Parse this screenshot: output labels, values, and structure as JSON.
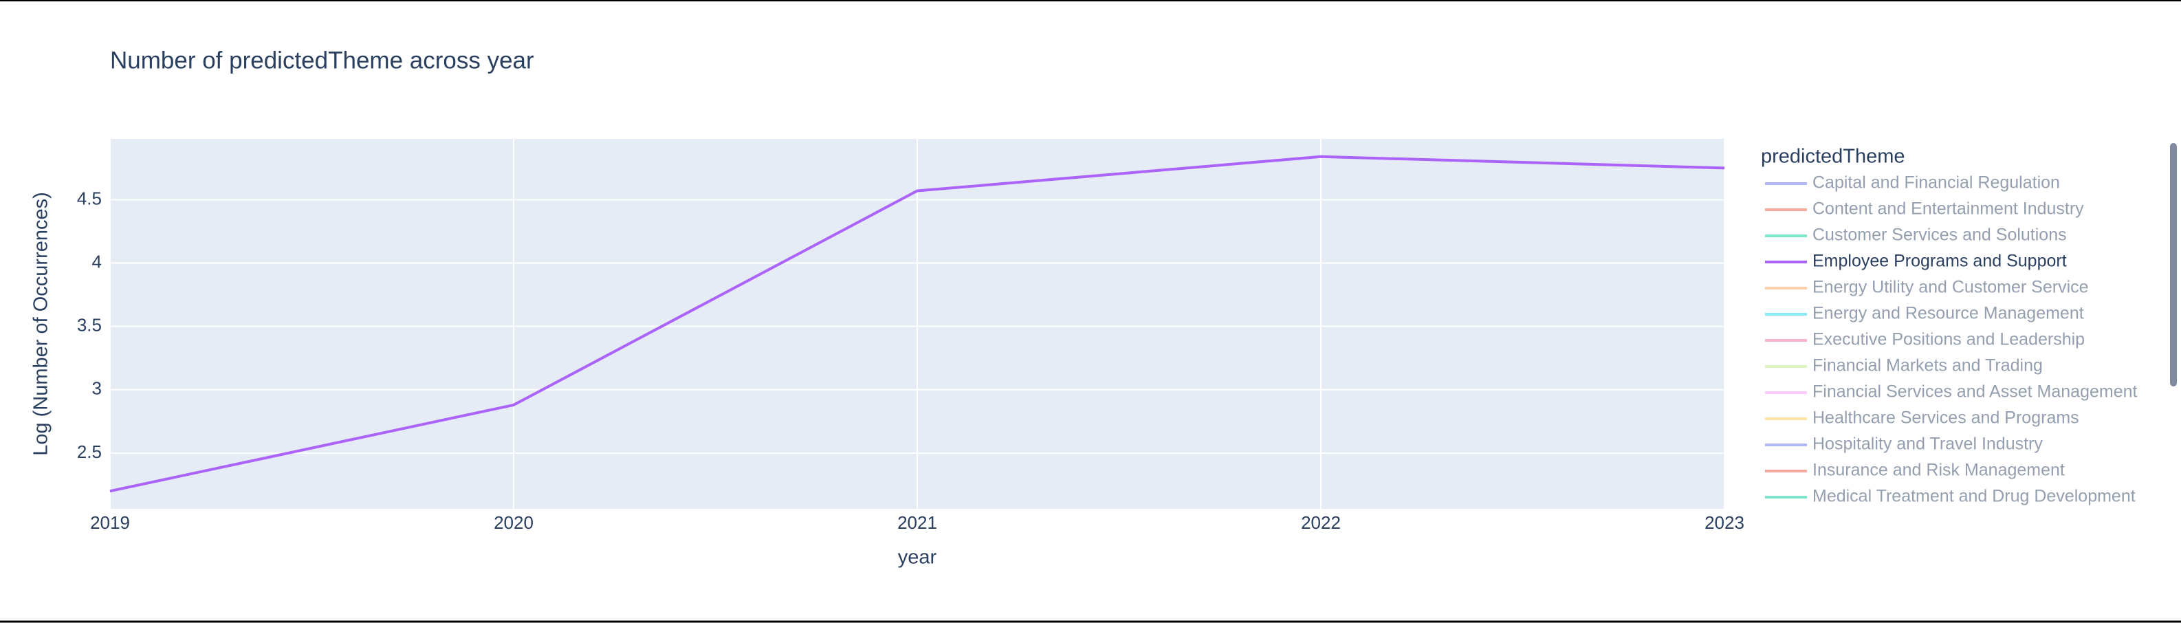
{
  "chart_data": {
    "type": "line",
    "title": "Number of predictedTheme across year",
    "x_label": "year",
    "y_label": "Log (Number of Occurrences)",
    "x": [
      2019,
      2020,
      2021,
      2022,
      2023
    ],
    "xlim": [
      2019,
      2023
    ],
    "xticks": [
      2019,
      2020,
      2021,
      2022,
      2023
    ],
    "ylim": [
      2.06,
      4.98
    ],
    "yticks": [
      2.5,
      3,
      {
        "value": 3.5,
        "label": "3.5"
      },
      4,
      4.5
    ],
    "grid": true,
    "legend_title": "predictedTheme",
    "series": [
      {
        "name": "Capital and Financial Regulation",
        "color": "#636efa",
        "visible": "legendonly"
      },
      {
        "name": "Content and Entertainment Industry",
        "color": "#EF553B",
        "visible": "legendonly"
      },
      {
        "name": "Customer Services and Solutions",
        "color": "#00cc96",
        "visible": "legendonly"
      },
      {
        "name": "Employee Programs and Support",
        "color": "#ab63fa",
        "visible": true,
        "values": [
          2.2,
          2.88,
          4.57,
          4.84,
          4.75
        ]
      },
      {
        "name": "Energy Utility and Customer Service",
        "color": "#FFA15A",
        "visible": "legendonly"
      },
      {
        "name": "Energy and Resource Management",
        "color": "#19d3f3",
        "visible": "legendonly"
      },
      {
        "name": "Executive Positions and Leadership",
        "color": "#FF6692",
        "visible": "legendonly"
      },
      {
        "name": "Financial Markets and Trading",
        "color": "#B6E880",
        "visible": "legendonly"
      },
      {
        "name": "Financial Services and Asset Management",
        "color": "#FF97FF",
        "visible": "legendonly"
      },
      {
        "name": "Healthcare Services and Programs",
        "color": "#FECB52",
        "visible": "legendonly"
      },
      {
        "name": "Hospitality and Travel Industry",
        "color": "#636efa",
        "visible": "legendonly"
      },
      {
        "name": "Insurance and Risk Management",
        "color": "#EF553B",
        "visible": "legendonly"
      },
      {
        "name": "Medical Treatment and Drug Development",
        "color": "#00cc96",
        "visible": "legendonly"
      }
    ]
  }
}
